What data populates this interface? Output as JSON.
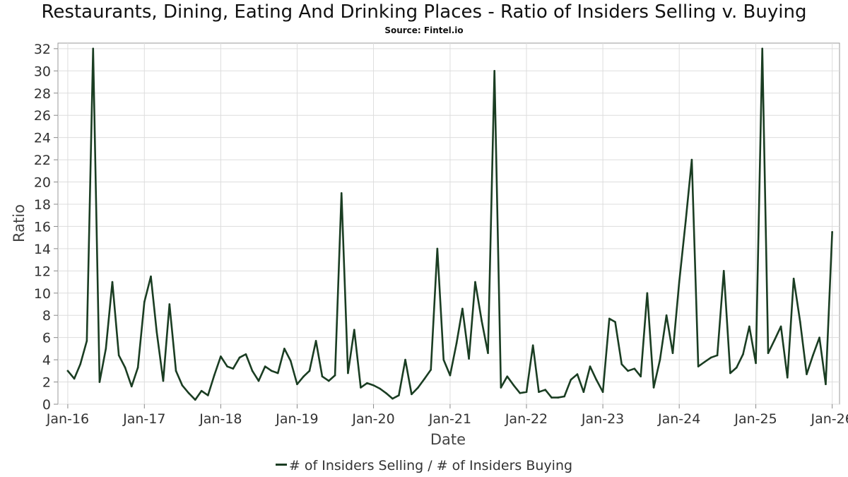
{
  "chart_data": {
    "type": "line",
    "title": "Restaurants, Dining, Eating And Drinking Places - Ratio of Insiders Selling v. Buying",
    "subtitle": "Source: Fintel.io",
    "xlabel": "Date",
    "ylabel": "Ratio",
    "x_ticks": [
      "Jan-16",
      "Jan-17",
      "Jan-18",
      "Jan-19",
      "Jan-20",
      "Jan-21",
      "Jan-22",
      "Jan-23",
      "Jan-24",
      "Jan-25",
      "Jan-26"
    ],
    "y_ticks": [
      0,
      2,
      4,
      6,
      8,
      10,
      12,
      14,
      16,
      18,
      20,
      22,
      24,
      26,
      28,
      30,
      32
    ],
    "xlim": [
      "2015-11-15",
      "2026-02-05"
    ],
    "ylim": [
      0,
      32.5
    ],
    "grid": true,
    "legend_position": "bottom",
    "series": [
      {
        "name": "# of Insiders Selling / # of Insiders Buying",
        "color": "#1a3d22",
        "points": [
          [
            "2016-01-01",
            3.0
          ],
          [
            "2016-02-01",
            2.3
          ],
          [
            "2016-03-01",
            3.6
          ],
          [
            "2016-04-01",
            5.7
          ],
          [
            "2016-05-01",
            32.0
          ],
          [
            "2016-06-01",
            2.0
          ],
          [
            "2016-07-01",
            5.0
          ],
          [
            "2016-08-01",
            11.0
          ],
          [
            "2016-09-01",
            4.4
          ],
          [
            "2016-10-01",
            3.3
          ],
          [
            "2016-11-01",
            1.6
          ],
          [
            "2016-12-01",
            3.3
          ],
          [
            "2017-01-01",
            9.2
          ],
          [
            "2017-02-01",
            11.5
          ],
          [
            "2017-03-01",
            6.5
          ],
          [
            "2017-04-01",
            2.1
          ],
          [
            "2017-05-01",
            9.0
          ],
          [
            "2017-06-01",
            3.0
          ],
          [
            "2017-07-01",
            1.7
          ],
          [
            "2017-08-01",
            1.0
          ],
          [
            "2017-09-01",
            0.4
          ],
          [
            "2017-10-01",
            1.2
          ],
          [
            "2017-11-01",
            0.8
          ],
          [
            "2017-12-01",
            2.6
          ],
          [
            "2018-01-01",
            4.3
          ],
          [
            "2018-02-01",
            3.4
          ],
          [
            "2018-03-01",
            3.2
          ],
          [
            "2018-04-01",
            4.2
          ],
          [
            "2018-05-01",
            4.5
          ],
          [
            "2018-06-01",
            3.0
          ],
          [
            "2018-07-01",
            2.1
          ],
          [
            "2018-08-01",
            3.4
          ],
          [
            "2018-09-01",
            3.0
          ],
          [
            "2018-10-01",
            2.8
          ],
          [
            "2018-11-01",
            5.0
          ],
          [
            "2018-12-01",
            3.9
          ],
          [
            "2019-01-01",
            1.8
          ],
          [
            "2019-02-01",
            2.5
          ],
          [
            "2019-03-01",
            3.0
          ],
          [
            "2019-04-01",
            5.7
          ],
          [
            "2019-05-01",
            2.5
          ],
          [
            "2019-06-01",
            2.1
          ],
          [
            "2019-07-01",
            2.6
          ],
          [
            "2019-08-01",
            19.0
          ],
          [
            "2019-09-01",
            2.8
          ],
          [
            "2019-10-01",
            6.7
          ],
          [
            "2019-11-01",
            1.5
          ],
          [
            "2019-12-01",
            1.9
          ],
          [
            "2020-01-01",
            1.7
          ],
          [
            "2020-02-01",
            1.4
          ],
          [
            "2020-03-01",
            1.0
          ],
          [
            "2020-04-01",
            0.5
          ],
          [
            "2020-05-01",
            0.8
          ],
          [
            "2020-06-01",
            4.0
          ],
          [
            "2020-07-01",
            0.9
          ],
          [
            "2020-08-01",
            1.5
          ],
          [
            "2020-09-01",
            2.3
          ],
          [
            "2020-10-01",
            3.1
          ],
          [
            "2020-11-01",
            14.0
          ],
          [
            "2020-12-01",
            4.0
          ],
          [
            "2021-01-01",
            2.6
          ],
          [
            "2021-02-01",
            5.5
          ],
          [
            "2021-03-01",
            8.6
          ],
          [
            "2021-04-01",
            4.1
          ],
          [
            "2021-05-01",
            11.0
          ],
          [
            "2021-06-01",
            7.5
          ],
          [
            "2021-07-01",
            4.6
          ],
          [
            "2021-08-01",
            30.0
          ],
          [
            "2021-09-01",
            1.5
          ],
          [
            "2021-10-01",
            2.5
          ],
          [
            "2021-11-01",
            1.7
          ],
          [
            "2021-12-01",
            1.0
          ],
          [
            "2022-01-01",
            1.1
          ],
          [
            "2022-02-01",
            5.3
          ],
          [
            "2022-03-01",
            1.1
          ],
          [
            "2022-04-01",
            1.3
          ],
          [
            "2022-05-01",
            0.6
          ],
          [
            "2022-06-01",
            0.6
          ],
          [
            "2022-07-01",
            0.7
          ],
          [
            "2022-08-01",
            2.2
          ],
          [
            "2022-09-01",
            2.7
          ],
          [
            "2022-10-01",
            1.1
          ],
          [
            "2022-11-01",
            3.4
          ],
          [
            "2022-12-01",
            2.2
          ],
          [
            "2023-01-01",
            1.1
          ],
          [
            "2023-02-01",
            7.7
          ],
          [
            "2023-03-01",
            7.4
          ],
          [
            "2023-04-01",
            3.6
          ],
          [
            "2023-05-01",
            3.0
          ],
          [
            "2023-06-01",
            3.2
          ],
          [
            "2023-07-01",
            2.5
          ],
          [
            "2023-08-01",
            10.0
          ],
          [
            "2023-09-01",
            1.5
          ],
          [
            "2023-10-01",
            4.0
          ],
          [
            "2023-11-01",
            8.0
          ],
          [
            "2023-12-01",
            4.6
          ],
          [
            "2024-01-01",
            11.0
          ],
          [
            "2024-02-01",
            16.5
          ],
          [
            "2024-03-01",
            22.0
          ],
          [
            "2024-04-01",
            3.4
          ],
          [
            "2024-05-01",
            3.8
          ],
          [
            "2024-06-01",
            4.2
          ],
          [
            "2024-07-01",
            4.4
          ],
          [
            "2024-08-01",
            12.0
          ],
          [
            "2024-09-01",
            2.8
          ],
          [
            "2024-10-01",
            3.3
          ],
          [
            "2024-11-01",
            4.5
          ],
          [
            "2024-12-01",
            7.0
          ],
          [
            "2025-01-01",
            3.7
          ],
          [
            "2025-02-01",
            32.0
          ],
          [
            "2025-03-01",
            4.6
          ],
          [
            "2025-04-01",
            5.8
          ],
          [
            "2025-05-01",
            7.0
          ],
          [
            "2025-06-01",
            2.4
          ],
          [
            "2025-07-01",
            11.3
          ],
          [
            "2025-08-01",
            7.4
          ],
          [
            "2025-09-01",
            2.7
          ],
          [
            "2025-10-01",
            4.4
          ],
          [
            "2025-11-01",
            6.0
          ],
          [
            "2025-12-01",
            1.8
          ],
          [
            "2026-01-01",
            15.5
          ]
        ]
      }
    ]
  }
}
